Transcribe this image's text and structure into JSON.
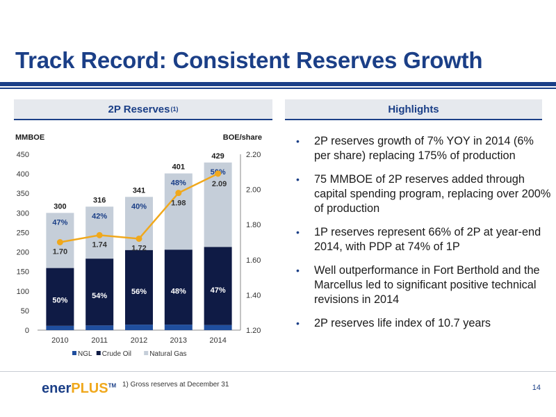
{
  "header": {
    "title": "Track Record: Consistent Reserves Growth"
  },
  "left_panel": {
    "heading": "2P Reserves",
    "heading_note": "(1)"
  },
  "right_panel": {
    "heading": "Highlights",
    "bullets": [
      "2P reserves growth of 7% YOY in 2014 (6% per share) replacing 175% of production",
      "75 MMBOE of 2P reserves added through capital spending program, replacing over 200% of production",
      "1P reserves represent 66% of 2P at year-end 2014, with PDP at 74% of 1P",
      "Well outperformance in Fort Berthold and the Marcellus led to significant positive technical revisions in 2014",
      "2P reserves life index of 10.7 years"
    ]
  },
  "footer": {
    "logo_part1": "ener",
    "logo_part2": "PLUS",
    "logo_mark": "TM",
    "footnote": "1)  Gross reserves at December 31",
    "page_number": "14"
  },
  "colors": {
    "brand": "#1b3f87",
    "accent": "#f0a81c",
    "ngl": "#1f4e9e",
    "crude": "#0f1b45",
    "gas": "#c5ced9",
    "line": "#f0a81c"
  },
  "chart_data": {
    "type": "bar",
    "stacked": true,
    "categories": [
      "2010",
      "2011",
      "2012",
      "2013",
      "2014"
    ],
    "ylabel": "MMBOE",
    "y2label": "BOE/share",
    "ylim": [
      0,
      450
    ],
    "yticks": [
      0,
      50,
      100,
      150,
      200,
      250,
      300,
      350,
      400,
      450
    ],
    "y2lim": [
      1.2,
      2.2
    ],
    "y2ticks": [
      "1.20",
      "1.40",
      "1.60",
      "1.80",
      "2.00",
      "2.20"
    ],
    "series": [
      {
        "name": "NGL",
        "values": [
          11,
          12,
          14,
          14,
          13
        ],
        "color": "#1f4e9e"
      },
      {
        "name": "Crude Oil",
        "values": [
          148,
          171,
          191,
          192,
          200
        ],
        "color": "#0f1b45"
      },
      {
        "name": "Natural Gas",
        "values": [
          141,
          133,
          136,
          195,
          216
        ],
        "color": "#c5ced9"
      }
    ],
    "totals": [
      "300",
      "316",
      "341",
      "401",
      "429"
    ],
    "crude_pct": [
      "50%",
      "54%",
      "56%",
      "48%",
      "47%"
    ],
    "gas_pct": [
      "47%",
      "42%",
      "40%",
      "48%",
      "50%"
    ],
    "line_series": {
      "values": [
        1.7,
        1.74,
        1.72,
        1.98,
        2.09
      ],
      "labels": [
        "1.70",
        "1.74",
        "1.72",
        "1.98",
        "2.09"
      ],
      "axis": "right"
    },
    "legend": [
      "NGL",
      "Crude Oil",
      "Natural Gas"
    ],
    "legend_position": "bottom",
    "grid": false
  }
}
